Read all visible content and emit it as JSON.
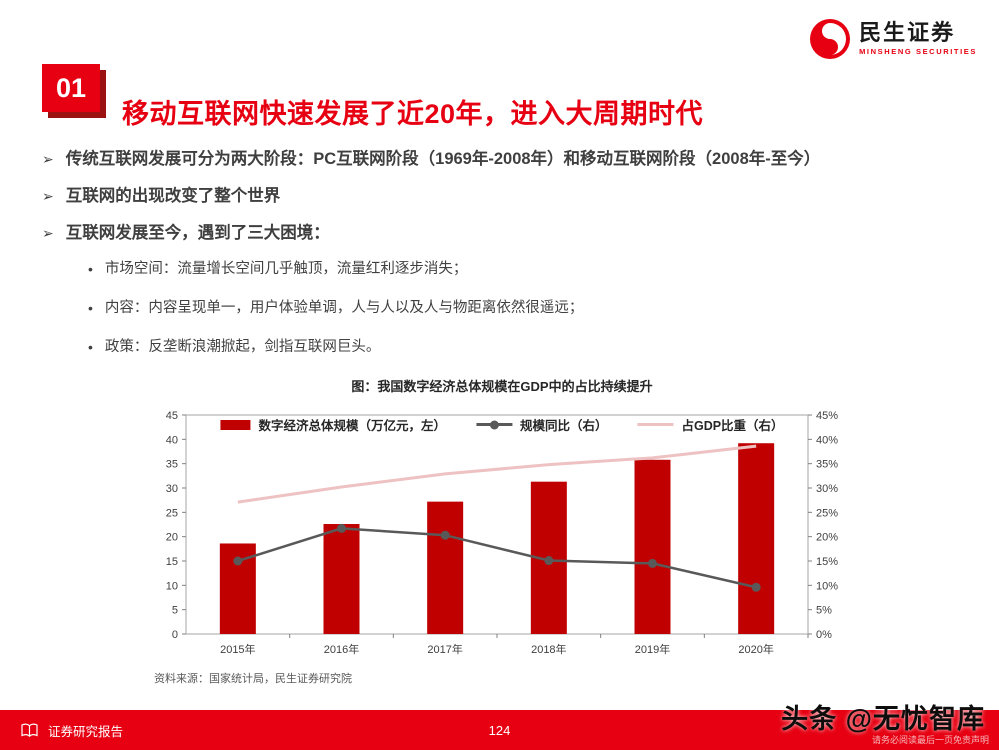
{
  "glyphs": {
    "bullet_arrow": "➢",
    "dot": "•"
  },
  "logo": {
    "name": "民生证券",
    "subtitle": "MINSHENG SECURITIES"
  },
  "header": {
    "badge": "01",
    "title": "移动互联网快速发展了近20年，进入大周期时代"
  },
  "bullets": [
    {
      "text": "传统互联网发展可分为两大阶段：PC互联网阶段（1969年-2008年）和移动互联网阶段（2008年-至今）"
    },
    {
      "text": "互联网的出现改变了整个世界"
    },
    {
      "text": "互联网发展至今，遇到了三大困境："
    }
  ],
  "sub_bullets": [
    {
      "text": "市场空间：流量增长空间几乎触顶，流量红利逐步消失；"
    },
    {
      "text": "内容：内容呈现单一，用户体验单调，人与人以及人与物距离依然很遥远；"
    },
    {
      "text": "政策：反垄断浪潮掀起，剑指互联网巨头。"
    }
  ],
  "chart": {
    "title": "图：我国数字经济总体规模在GDP中的占比持续提升",
    "source": "资料来源：国家统计局，民生证券研究院"
  },
  "chart_data": {
    "type": "bar",
    "subtype": "combo-bar-line",
    "title": "图：我国数字经济总体规模在GDP中的占比持续提升",
    "categories": [
      "2015年",
      "2016年",
      "2017年",
      "2018年",
      "2019年",
      "2020年"
    ],
    "series": [
      {
        "name": "数字经济总体规模（万亿元，左）",
        "type": "bar",
        "axis": "left",
        "color": "#c00000",
        "values": [
          18.6,
          22.6,
          27.2,
          31.3,
          35.8,
          39.2
        ]
      },
      {
        "name": "规模同比（右）",
        "type": "line",
        "axis": "right",
        "color": "#595959",
        "marker": true,
        "values": [
          15.0,
          21.7,
          20.3,
          15.1,
          14.5,
          9.6
        ]
      },
      {
        "name": "占GDP比重（右）",
        "type": "line",
        "axis": "right",
        "color": "#eec2c2",
        "marker": false,
        "values": [
          27.1,
          30.2,
          32.9,
          34.8,
          36.2,
          38.6
        ]
      }
    ],
    "left_axis": {
      "min": 0,
      "max": 45,
      "step": 5
    },
    "right_axis": {
      "min": 0,
      "max": 45,
      "step": 5,
      "suffix": "%"
    },
    "grid": false,
    "legend_position": "top"
  },
  "footer": {
    "left": "证券研究报告",
    "page": "124",
    "disclaimer": "请务必阅读最后一页免责声明",
    "watermark": "头条 @无忧智库"
  }
}
